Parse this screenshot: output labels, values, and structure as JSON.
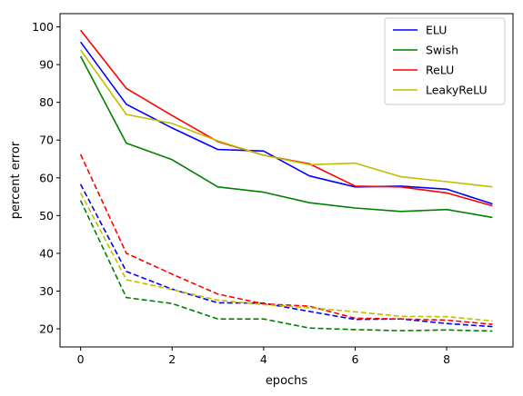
{
  "chart_data": {
    "type": "line",
    "title": "",
    "xlabel": "epochs",
    "ylabel": "percent error",
    "xlim": [
      -0.45,
      9.45
    ],
    "ylim": [
      15.2,
      103.5
    ],
    "xticks": [
      0,
      2,
      4,
      6,
      8
    ],
    "yticks": [
      20,
      30,
      40,
      50,
      60,
      70,
      80,
      90,
      100
    ],
    "grid": false,
    "legend_position": "top-right",
    "x": [
      0,
      1,
      2,
      3,
      4,
      5,
      6,
      7,
      8,
      9
    ],
    "series": [
      {
        "name": "ELU",
        "color": "#0000ff",
        "style": "solid",
        "values": [
          96.0,
          79.5,
          73.2,
          67.5,
          67.1,
          60.5,
          57.6,
          57.8,
          57.0,
          53.1
        ]
      },
      {
        "name": "Swish",
        "color": "#008000",
        "style": "solid",
        "values": [
          92.2,
          69.2,
          64.8,
          57.6,
          56.2,
          53.4,
          52.0,
          51.1,
          51.6,
          49.5
        ]
      },
      {
        "name": "ReLU",
        "color": "#ff0000",
        "style": "solid",
        "values": [
          99.1,
          83.7,
          76.5,
          69.6,
          66.0,
          63.7,
          57.8,
          57.6,
          56.0,
          52.6
        ]
      },
      {
        "name": "LeakyReLU",
        "color": "#bfbf00",
        "style": "solid",
        "values": [
          93.9,
          76.8,
          74.4,
          69.8,
          66.0,
          63.5,
          63.9,
          60.3,
          59.0,
          57.6
        ]
      },
      {
        "color": "#0000ff",
        "style": "dashed",
        "values": [
          58.3,
          35.2,
          30.5,
          26.9,
          26.8,
          24.6,
          22.5,
          22.6,
          21.4,
          20.6
        ]
      },
      {
        "color": "#008000",
        "style": "dashed",
        "values": [
          54.0,
          28.3,
          26.7,
          22.6,
          22.6,
          20.2,
          19.8,
          19.5,
          19.7,
          19.4
        ]
      },
      {
        "color": "#ff0000",
        "style": "dashed",
        "values": [
          66.2,
          40.0,
          34.5,
          29.2,
          26.6,
          26.0,
          22.8,
          22.6,
          22.3,
          21.2
        ]
      },
      {
        "color": "#bfbf00",
        "style": "dashed",
        "values": [
          56.0,
          33.0,
          30.4,
          27.6,
          26.4,
          25.6,
          24.5,
          23.3,
          23.2,
          22.1
        ]
      }
    ]
  }
}
